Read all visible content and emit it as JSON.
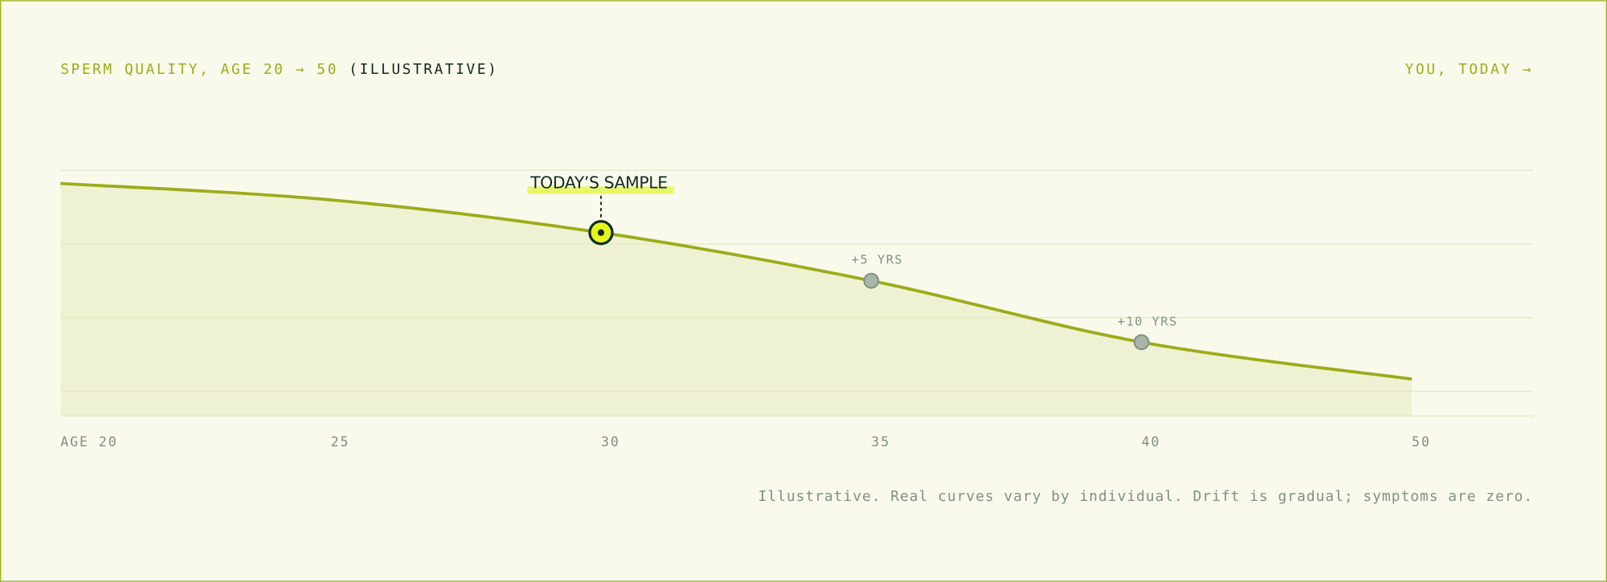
{
  "chart_data": {
    "type": "line",
    "title": "SPERM QUALITY, AGE 20 → 50",
    "title_note": "(ILLUSTRATIVE)",
    "link": "YOU, TODAY →",
    "categories": [
      "AGE 20",
      "25",
      "30",
      "35",
      "40",
      "50"
    ],
    "values": [
      94.6,
      87.9,
      74.6,
      55,
      30,
      15
    ],
    "color": "#9aad1a",
    "ylim": [
      0,
      100
    ],
    "gridlines": [
      10,
      40,
      70,
      100
    ],
    "annotations": [
      {
        "label": "TODAY’S SAMPLE",
        "at": "30"
      },
      {
        "label": "+5 YRS",
        "at": "35"
      },
      {
        "label": "+10 YRS",
        "at": "40"
      }
    ],
    "footnote": "Illustrative. Real curves vary by individual. Drift is gradual; symptoms are zero."
  }
}
